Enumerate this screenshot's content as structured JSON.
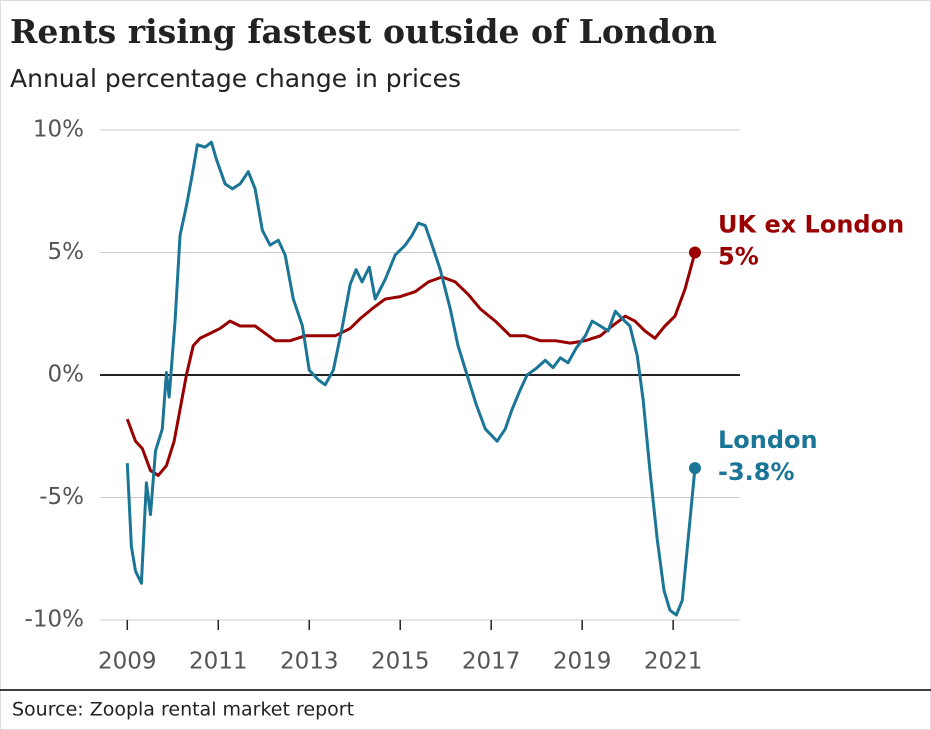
{
  "chart_data": {
    "type": "line",
    "title": "Rents rising fastest outside of London",
    "subtitle": "Annual percentage change in prices",
    "source": "Source: Zoopla rental market report",
    "xlim": [
      2008.4,
      2022.47
    ],
    "xticks": [
      2009,
      2011,
      2013,
      2015,
      2017,
      2019,
      2021
    ],
    "ylim": [
      -10,
      10
    ],
    "yticks": [
      {
        "value": -10,
        "label": "-10%"
      },
      {
        "value": -5,
        "label": "-5%"
      },
      {
        "value": 0,
        "label": "0%"
      },
      {
        "value": 5,
        "label": "5%"
      },
      {
        "value": 10,
        "label": "10%"
      }
    ],
    "grid": true,
    "series": [
      {
        "name": "UK ex London",
        "color": "#990000",
        "end_label": "5%",
        "x": [
          2009.0,
          2009.18,
          2009.33,
          2009.51,
          2009.68,
          2009.86,
          2010.03,
          2010.16,
          2010.3,
          2010.45,
          2010.6,
          2010.82,
          2011.04,
          2011.26,
          2011.48,
          2011.81,
          2012.03,
          2012.25,
          2012.58,
          2012.91,
          2013.24,
          2013.57,
          2013.9,
          2014.12,
          2014.38,
          2014.67,
          2015.0,
          2015.33,
          2015.62,
          2015.92,
          2016.21,
          2016.49,
          2016.76,
          2017.09,
          2017.42,
          2017.75,
          2018.08,
          2018.41,
          2018.74,
          2019.07,
          2019.4,
          2019.66,
          2019.95,
          2020.16,
          2020.38,
          2020.6,
          2020.82,
          2021.04,
          2021.26,
          2021.48
        ],
        "values": [
          -1.8,
          -2.7,
          -3.0,
          -3.9,
          -4.1,
          -3.7,
          -2.7,
          -1.4,
          0.0,
          1.2,
          1.5,
          1.7,
          1.9,
          2.2,
          2.0,
          2.0,
          1.7,
          1.4,
          1.4,
          1.6,
          1.6,
          1.6,
          1.9,
          2.3,
          2.7,
          3.1,
          3.2,
          3.4,
          3.8,
          4.0,
          3.8,
          3.3,
          2.7,
          2.2,
          1.6,
          1.6,
          1.4,
          1.4,
          1.3,
          1.4,
          1.6,
          2.0,
          2.4,
          2.2,
          1.8,
          1.5,
          2.0,
          2.4,
          3.5,
          5.0
        ]
      },
      {
        "name": "London",
        "color": "#1b7596",
        "end_label": "-3.8%",
        "x": [
          2009.0,
          2009.09,
          2009.18,
          2009.31,
          2009.42,
          2009.51,
          2009.62,
          2009.77,
          2009.86,
          2009.92,
          2010.05,
          2010.16,
          2010.3,
          2010.43,
          2010.54,
          2010.71,
          2010.85,
          2010.96,
          2011.15,
          2011.31,
          2011.48,
          2011.66,
          2011.81,
          2011.97,
          2012.14,
          2012.32,
          2012.47,
          2012.65,
          2012.85,
          2013.0,
          2013.2,
          2013.35,
          2013.53,
          2013.73,
          2013.9,
          2014.03,
          2014.16,
          2014.32,
          2014.45,
          2014.67,
          2014.89,
          2015.11,
          2015.26,
          2015.4,
          2015.55,
          2015.7,
          2015.88,
          2016.1,
          2016.27,
          2016.47,
          2016.67,
          2016.87,
          2017.13,
          2017.31,
          2017.46,
          2017.64,
          2017.79,
          2018.01,
          2018.19,
          2018.36,
          2018.52,
          2018.69,
          2018.87,
          2019.07,
          2019.22,
          2019.4,
          2019.57,
          2019.73,
          2019.88,
          2020.05,
          2020.21,
          2020.34,
          2020.49,
          2020.65,
          2020.8,
          2020.93,
          2021.07,
          2021.2,
          2021.33,
          2021.48
        ],
        "values": [
          -3.6,
          -7.0,
          -8.0,
          -8.5,
          -4.4,
          -5.7,
          -3.1,
          -2.2,
          0.1,
          -0.9,
          2.2,
          5.7,
          6.9,
          8.2,
          9.4,
          9.3,
          9.5,
          8.8,
          7.8,
          7.6,
          7.8,
          8.3,
          7.6,
          5.9,
          5.3,
          5.5,
          4.9,
          3.1,
          2.0,
          0.2,
          -0.2,
          -0.4,
          0.2,
          2.0,
          3.7,
          4.3,
          3.8,
          4.4,
          3.1,
          3.9,
          4.9,
          5.3,
          5.7,
          6.2,
          6.1,
          5.3,
          4.3,
          2.7,
          1.2,
          0.0,
          -1.2,
          -2.2,
          -2.7,
          -2.2,
          -1.4,
          -0.6,
          0.0,
          0.3,
          0.6,
          0.3,
          0.7,
          0.5,
          1.1,
          1.6,
          2.2,
          2.0,
          1.8,
          2.6,
          2.3,
          2.0,
          0.8,
          -1.0,
          -3.9,
          -6.7,
          -8.8,
          -9.6,
          -9.8,
          -9.2,
          -6.7,
          -3.8
        ]
      }
    ]
  }
}
